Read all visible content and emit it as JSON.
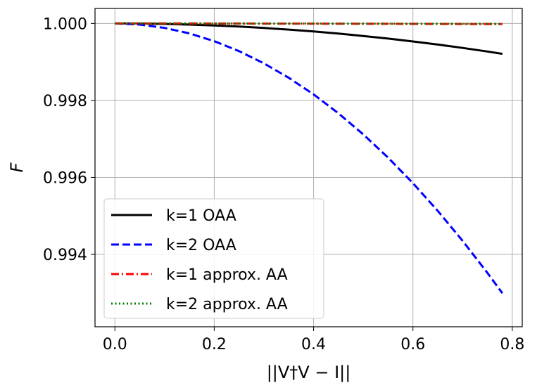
{
  "chart_data": {
    "type": "line",
    "xlabel": "||V†V − I||",
    "ylabel": "F",
    "xlim": [
      -0.04,
      0.82
    ],
    "ylim": [
      0.99212,
      1.00039
    ],
    "grid": true,
    "legend_position": "bottom-left",
    "x_ticks": [
      0.0,
      0.2,
      0.4,
      0.6,
      0.8
    ],
    "x_tick_labels": [
      "0.0",
      "0.2",
      "0.4",
      "0.6",
      "0.8"
    ],
    "y_ticks": [
      0.994,
      0.996,
      0.998,
      1.0
    ],
    "y_tick_labels": [
      "0.994",
      "0.996",
      "0.998",
      "1.000"
    ],
    "x": [
      0.0,
      0.05,
      0.1,
      0.15,
      0.2,
      0.25,
      0.3,
      0.35,
      0.4,
      0.45,
      0.5,
      0.55,
      0.6,
      0.65,
      0.7,
      0.75,
      0.78
    ],
    "series": [
      {
        "name": "k=1 OAA",
        "color": "#000000",
        "style": "solid",
        "values": [
          1.0,
          0.999997,
          0.999987,
          0.999971,
          0.999948,
          0.999919,
          0.999883,
          0.999841,
          0.999792,
          0.999737,
          0.999675,
          0.999607,
          0.999532,
          0.999451,
          0.999364,
          0.99927,
          0.99921
        ]
      },
      {
        "name": "k=2 OAA",
        "color": "#0000ff",
        "style": "dashed",
        "values": [
          1.0,
          0.999971,
          0.999885,
          0.999741,
          0.999539,
          0.99928,
          0.998963,
          0.998589,
          0.998157,
          0.997667,
          0.997119,
          0.996514,
          0.995852,
          0.995131,
          0.994353,
          0.993518,
          0.99299
        ]
      },
      {
        "name": "k=1 approx. AA",
        "color": "#ff0000",
        "style": "dashdot",
        "values": [
          1.0,
          1.0,
          0.999999,
          0.999999,
          0.999998,
          0.999997,
          0.999996,
          0.999995,
          0.999994,
          0.999993,
          0.999991,
          0.99999,
          0.999988,
          0.999986,
          0.999985,
          0.999983,
          0.999982
        ]
      },
      {
        "name": "k=2 approx. AA",
        "color": "#008000",
        "style": "dotted",
        "values": [
          1.0,
          1.0,
          1.0,
          1.0,
          0.999999,
          0.999999,
          0.999998,
          0.999998,
          0.999997,
          0.999996,
          0.999995,
          0.999994,
          0.999993,
          0.999992,
          0.999991,
          0.99999,
          0.999989
        ]
      }
    ]
  }
}
